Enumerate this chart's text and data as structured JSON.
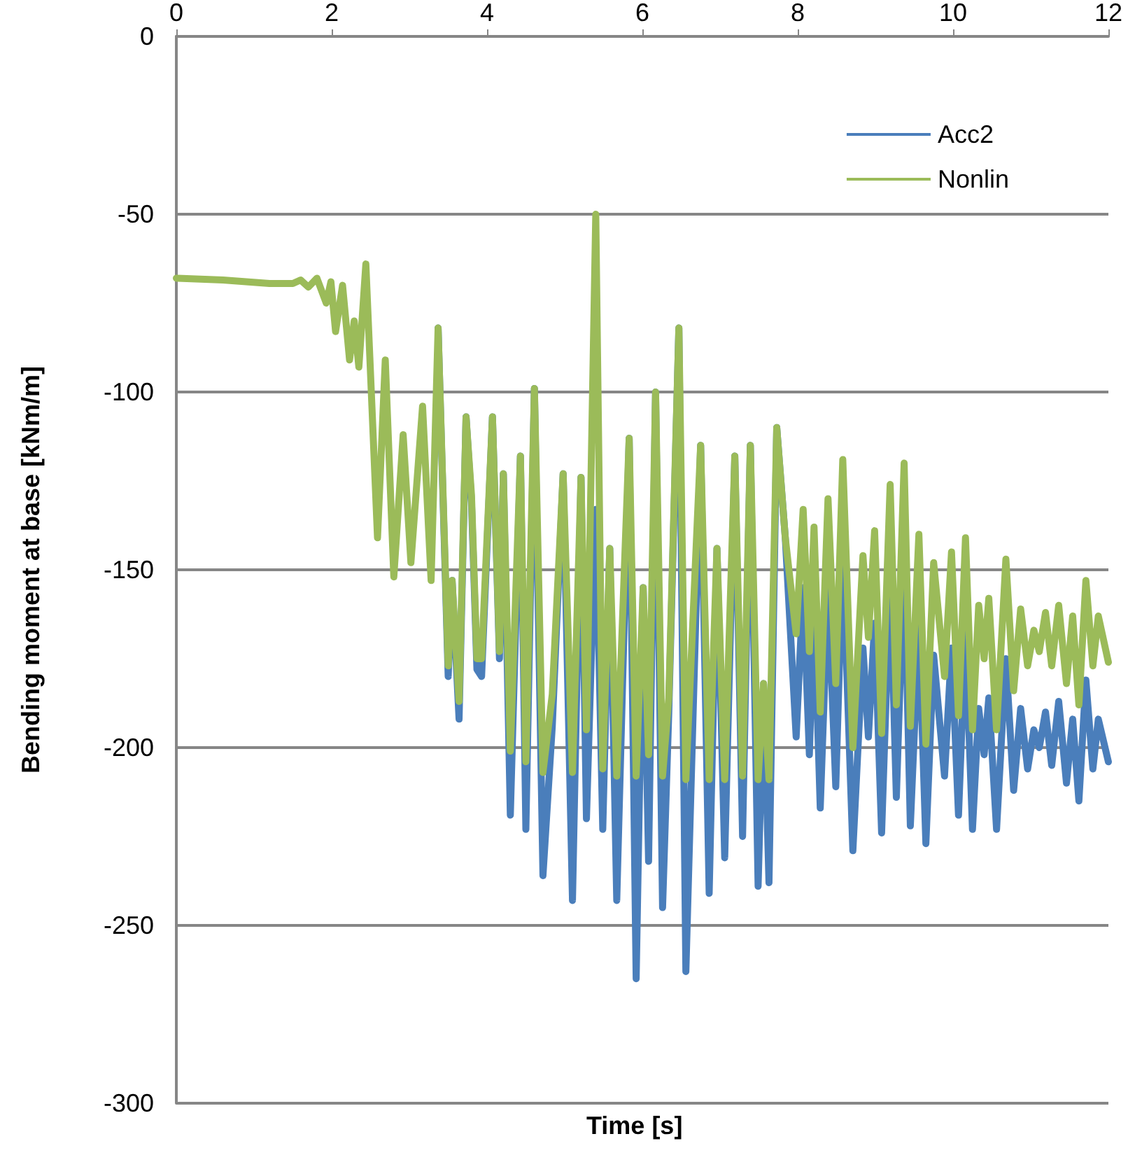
{
  "chart_data": {
    "type": "line",
    "xlabel": "Time [s]",
    "ylabel": "Bending moment at base [kNm/m]",
    "x": [
      0,
      0.6,
      1.2,
      1.5,
      1.6,
      1.7,
      1.81,
      1.93,
      1.99,
      2.05,
      2.14,
      2.23,
      2.29,
      2.35,
      2.44,
      2.59,
      2.69,
      2.8,
      2.92,
      3.02,
      3.17,
      3.28,
      3.37,
      3.5,
      3.55,
      3.64,
      3.73,
      3.8,
      3.87,
      3.93,
      4.07,
      4.16,
      4.21,
      4.3,
      4.43,
      4.5,
      4.61,
      4.72,
      4.84,
      4.98,
      5.1,
      5.21,
      5.28,
      5.4,
      5.49,
      5.58,
      5.67,
      5.83,
      5.92,
      6.01,
      6.08,
      6.17,
      6.26,
      6.34,
      6.47,
      6.56,
      6.75,
      6.86,
      6.96,
      7.06,
      7.19,
      7.29,
      7.39,
      7.49,
      7.56,
      7.63,
      7.73,
      7.84,
      7.98,
      8.07,
      8.15,
      8.21,
      8.29,
      8.39,
      8.49,
      8.58,
      8.71,
      8.84,
      8.91,
      8.99,
      9.08,
      9.19,
      9.27,
      9.37,
      9.45,
      9.56,
      9.65,
      9.75,
      9.89,
      9.98,
      10.07,
      10.16,
      10.25,
      10.33,
      10.4,
      10.46,
      10.56,
      10.68,
      10.78,
      10.87,
      10.96,
      11.04,
      11.11,
      11.19,
      11.27,
      11.36,
      11.46,
      11.54,
      11.62,
      11.71,
      11.8,
      11.87,
      12
    ],
    "series": [
      {
        "name": "Acc2",
        "color": "#4a7ebb",
        "values": [
          null,
          null,
          null,
          null,
          null,
          null,
          null,
          null,
          null,
          null,
          null,
          null,
          null,
          null,
          null,
          null,
          null,
          null,
          null,
          null,
          null,
          null,
          -82,
          -180,
          -153,
          -192,
          -107,
          -131,
          -178,
          -180,
          -107,
          -175,
          -123,
          -219,
          -118,
          -223,
          -99,
          -236,
          -194,
          -123,
          -243,
          -124,
          -220,
          -133,
          -223,
          -144,
          -243,
          -113,
          -265,
          -155,
          -232,
          -100,
          -245,
          -190,
          -82,
          -263,
          -115,
          -241,
          -144,
          -231,
          -118,
          -225,
          -115,
          -239,
          -182,
          -238,
          -110,
          -141,
          -197,
          -155,
          -202,
          -160,
          -217,
          -155,
          -211,
          -145,
          -229,
          -172,
          -197,
          -165,
          -224,
          -152,
          -214,
          -146,
          -222,
          -166,
          -227,
          -174,
          -208,
          -172,
          -219,
          -168,
          -223,
          -189,
          -202,
          -186,
          -223,
          -175,
          -212,
          -189,
          -206,
          -195,
          -200,
          -190,
          -205,
          -187,
          -210,
          -192,
          -215,
          -181,
          -206,
          -192,
          -204
        ]
      },
      {
        "name": "Nonlin",
        "color": "#9bbb59",
        "values": [
          -68,
          -68.5,
          -69.5,
          -69.5,
          -68.5,
          -70.5,
          -68,
          -75,
          -69,
          -83,
          -70,
          -91,
          -80,
          -93,
          -64,
          -141,
          -91,
          -152,
          -112,
          -148,
          -104,
          -153,
          -82,
          -177,
          -153,
          -187,
          -107,
          -129,
          -175,
          -175,
          -107,
          -173,
          -123,
          -201,
          -118,
          -204,
          -99,
          -207,
          -185,
          -123,
          -207,
          -124,
          -195,
          -50,
          -206,
          -144,
          -208,
          -113,
          -208,
          -155,
          -202,
          -100,
          -208,
          -186,
          -82,
          -209,
          -115,
          -209,
          -144,
          -209,
          -118,
          -208,
          -115,
          -209,
          -182,
          -209,
          -110,
          -141,
          -168,
          -133,
          -173,
          -138,
          -190,
          -130,
          -182,
          -119,
          -200,
          -146,
          -169,
          -139,
          -196,
          -126,
          -188,
          -120,
          -194,
          -140,
          -199,
          -148,
          -180,
          -145,
          -191,
          -141,
          -195,
          -160,
          -175,
          -158,
          -195,
          -147,
          -184,
          -161,
          -177,
          -167,
          -173,
          -162,
          -177,
          -160,
          -182,
          -163,
          -188,
          -153,
          -177,
          -163,
          -176
        ]
      }
    ],
    "xlim": [
      0,
      12
    ],
    "xticks": [
      0,
      2,
      4,
      6,
      8,
      10,
      12
    ],
    "ylim": [
      -300,
      0
    ],
    "yticks": [
      -300,
      -250,
      -200,
      -150,
      -100,
      -50,
      0
    ],
    "grid": "y",
    "legend": "top right",
    "marker": "none",
    "line_style": "solid"
  }
}
